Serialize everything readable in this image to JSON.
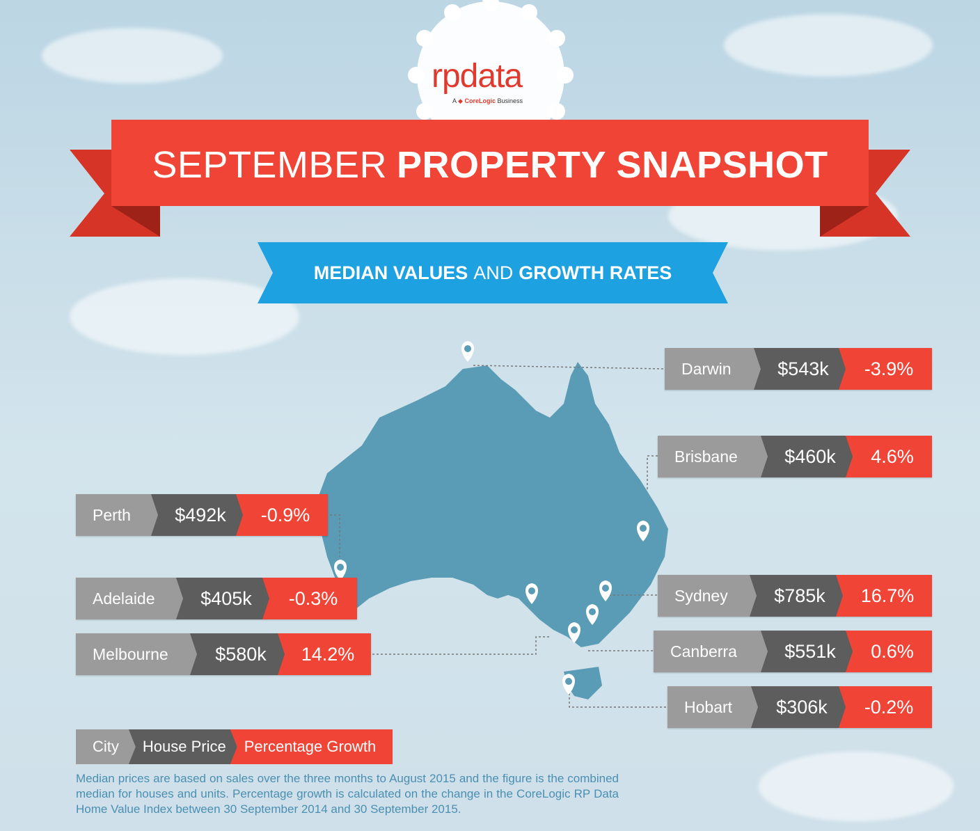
{
  "brand": {
    "logo": "rpdata",
    "tagline_prefix": "A",
    "tagline_brand": "CoreLogic",
    "tagline_suffix": "Business"
  },
  "title": {
    "light": "SEPTEMBER",
    "bold": "PROPERTY SNAPSHOT"
  },
  "subtitle": {
    "part1": "MEDIAN VALUES",
    "part2": "AND",
    "part3": "GROWTH RATES"
  },
  "colors": {
    "red": "#ef4436",
    "blue": "#1da1e1",
    "map": "#5a9bb5",
    "grey": "#9b9b9b",
    "dark": "#5d5d5d"
  },
  "cities": [
    {
      "name": "Darwin",
      "price": "$543k",
      "growth": "-3.9%"
    },
    {
      "name": "Brisbane",
      "price": "$460k",
      "growth": "4.6%"
    },
    {
      "name": "Perth",
      "price": "$492k",
      "growth": "-0.9%"
    },
    {
      "name": "Adelaide",
      "price": "$405k",
      "growth": "-0.3%"
    },
    {
      "name": "Melbourne",
      "price": "$580k",
      "growth": "14.2%"
    },
    {
      "name": "Sydney",
      "price": "$785k",
      "growth": "16.7%"
    },
    {
      "name": "Canberra",
      "price": "$551k",
      "growth": "0.6%"
    },
    {
      "name": "Hobart",
      "price": "$306k",
      "growth": "-0.2%"
    }
  ],
  "legend": {
    "city": "City",
    "price": "House Price",
    "growth": "Percentage Growth"
  },
  "footnote": "Median prices are based on sales over the three months to August 2015 and the figure is the combined median for houses and units. Percentage growth is calculated on the change in the CoreLogic RP Data Home Value Index between 30 September 2014 and 30 September 2015.",
  "icons": [
    "map-pin-icon",
    "corelogic-logo-icon"
  ]
}
